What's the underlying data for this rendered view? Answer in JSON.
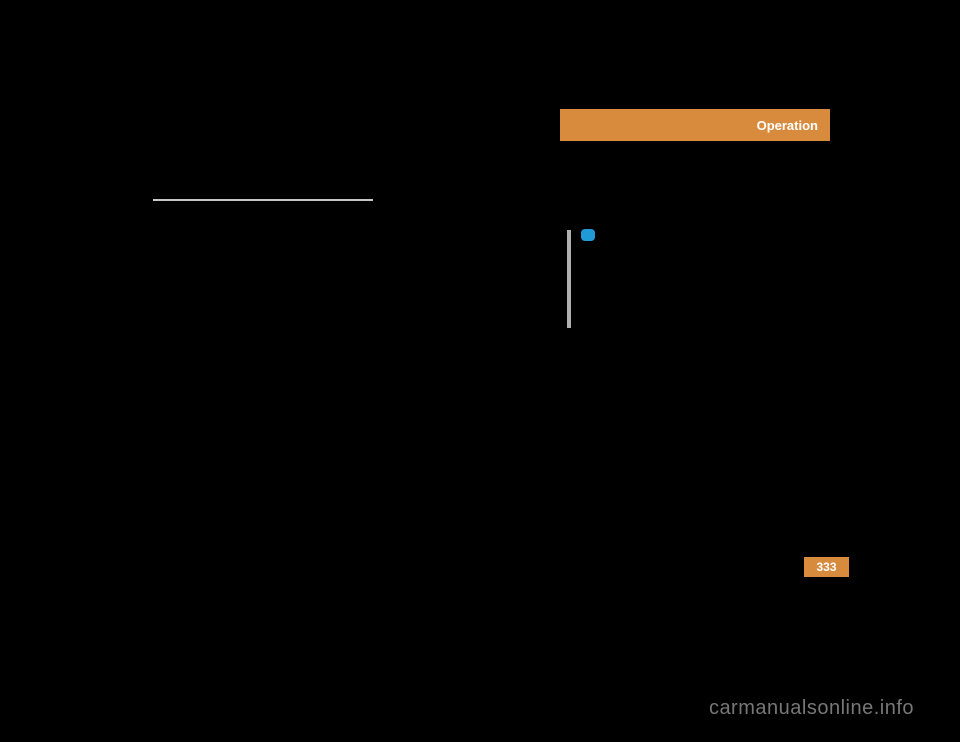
{
  "header": {
    "title": "Operation",
    "bg_color": "#d88b3c",
    "text_color": "#ffffff"
  },
  "note_icon": {
    "bg_color": "#1f9ad6"
  },
  "page_number": {
    "value": "333",
    "bg_color": "#d88b3c"
  },
  "watermark": {
    "text": "carmanualsonline.info",
    "color": "#777777"
  }
}
